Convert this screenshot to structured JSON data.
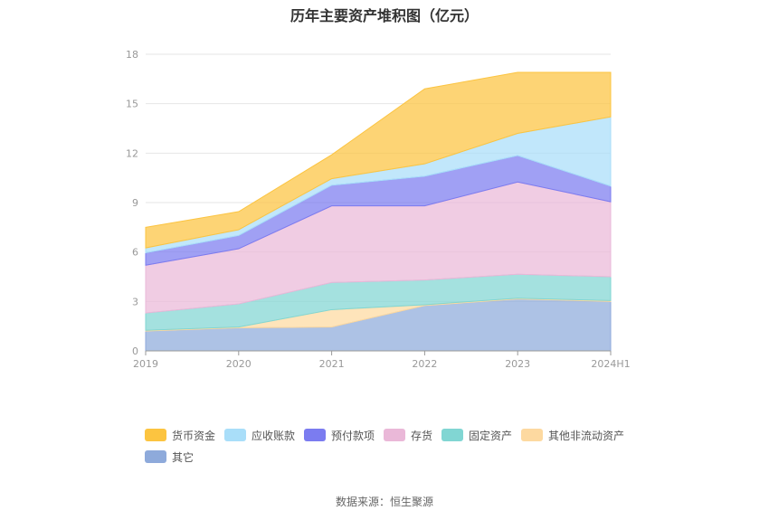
{
  "chart_data": {
    "type": "area",
    "title": "历年主要资产堆积图（亿元）",
    "categories": [
      "2019",
      "2020",
      "2021",
      "2022",
      "2023",
      "2024H1"
    ],
    "ylim": [
      0,
      18
    ],
    "yticks": [
      "0",
      "3",
      "6",
      "9",
      "12",
      "15",
      "18"
    ],
    "grid": true,
    "legend_position": "bottom",
    "series": [
      {
        "name": "其它",
        "color": "#8eaadb",
        "values": [
          1.2,
          1.4,
          1.45,
          2.75,
          3.15,
          3.0
        ]
      },
      {
        "name": "其他非流动资产",
        "color": "#fdd9a0",
        "values": [
          0.05,
          0.05,
          1.05,
          0.05,
          0.05,
          0.05
        ]
      },
      {
        "name": "固定资产",
        "color": "#81d6d3",
        "values": [
          1.05,
          1.4,
          1.65,
          1.5,
          1.45,
          1.45
        ]
      },
      {
        "name": "存货",
        "color": "#eab8d8",
        "values": [
          2.9,
          3.35,
          4.65,
          4.5,
          5.6,
          4.55
        ]
      },
      {
        "name": "预付款项",
        "color": "#7b7cf0",
        "values": [
          0.75,
          0.8,
          1.25,
          1.8,
          1.6,
          0.95
        ]
      },
      {
        "name": "应收账款",
        "color": "#a9def9",
        "values": [
          0.3,
          0.35,
          0.4,
          0.75,
          1.35,
          4.2
        ]
      },
      {
        "name": "货币资金",
        "color": "#fcc440",
        "values": [
          1.25,
          1.1,
          1.45,
          4.55,
          3.7,
          2.7
        ]
      }
    ]
  },
  "legend_order": [
    "货币资金",
    "应收账款",
    "预付款项",
    "存货",
    "固定资产",
    "其他非流动资产",
    "其它"
  ],
  "source": "数据来源：恒生聚源"
}
